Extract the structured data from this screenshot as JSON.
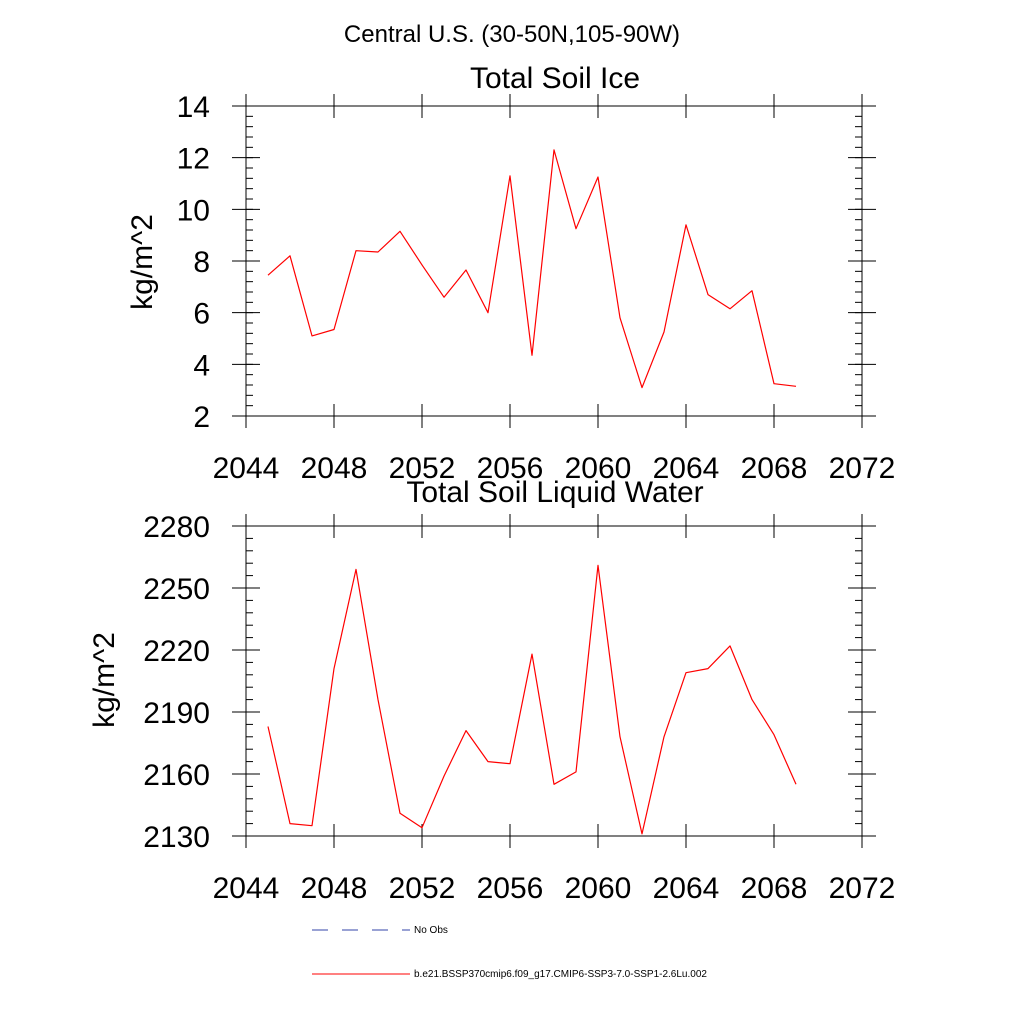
{
  "header": {
    "region_title": "Central U.S. (30-50N,105-90W)"
  },
  "legend": {
    "items": [
      {
        "label": "No Obs",
        "color": "#3344aa",
        "style": "dashed"
      },
      {
        "label": "b.e21.BSSP370cmip6.f09_g17.CMIP6-SSP3-7.0-SSP1-2.6Lu.002",
        "color": "#ff0000",
        "style": "solid"
      }
    ]
  },
  "chart_data": [
    {
      "type": "line",
      "title": "Total Soil Ice",
      "xlabel": "",
      "ylabel": "kg/m^2",
      "xlim": [
        2044,
        2072
      ],
      "ylim": [
        2,
        14
      ],
      "x_ticks": [
        "2044",
        "2048",
        "2052",
        "2056",
        "2060",
        "2064",
        "2068",
        "2072"
      ],
      "y_ticks": [
        "2",
        "4",
        "6",
        "8",
        "10",
        "12",
        "14"
      ],
      "series_color": "#ff0000",
      "x": [
        2045,
        2046,
        2047,
        2048,
        2049,
        2050,
        2051,
        2052,
        2053,
        2054,
        2055,
        2056,
        2057,
        2058,
        2059,
        2060,
        2061,
        2062,
        2063,
        2064,
        2065,
        2066,
        2067,
        2068,
        2069
      ],
      "values": [
        7.45,
        8.2,
        5.1,
        5.35,
        8.4,
        8.35,
        9.15,
        7.85,
        6.6,
        7.65,
        6.0,
        11.3,
        4.35,
        12.3,
        9.25,
        11.25,
        5.8,
        3.1,
        5.25,
        9.4,
        6.7,
        6.15,
        6.85,
        3.25,
        3.15
      ]
    },
    {
      "type": "line",
      "title": "Total Soil Liquid Water",
      "xlabel": "",
      "ylabel": "kg/m^2",
      "xlim": [
        2044,
        2072
      ],
      "ylim": [
        2130,
        2280
      ],
      "x_ticks": [
        "2044",
        "2048",
        "2052",
        "2056",
        "2060",
        "2064",
        "2068",
        "2072"
      ],
      "y_ticks": [
        "2130",
        "2160",
        "2190",
        "2220",
        "2250",
        "2280"
      ],
      "series_color": "#ff0000",
      "x": [
        2045,
        2046,
        2047,
        2048,
        2049,
        2050,
        2051,
        2052,
        2053,
        2054,
        2055,
        2056,
        2057,
        2058,
        2059,
        2060,
        2061,
        2062,
        2063,
        2064,
        2065,
        2066,
        2067,
        2068,
        2069
      ],
      "values": [
        2183,
        2136,
        2135,
        2211,
        2259,
        2196,
        2141,
        2134,
        2159,
        2181,
        2166,
        2165,
        2218,
        2155,
        2161,
        2261,
        2178,
        2131,
        2178,
        2209,
        2211,
        2222,
        2196,
        2179,
        2155
      ]
    }
  ]
}
